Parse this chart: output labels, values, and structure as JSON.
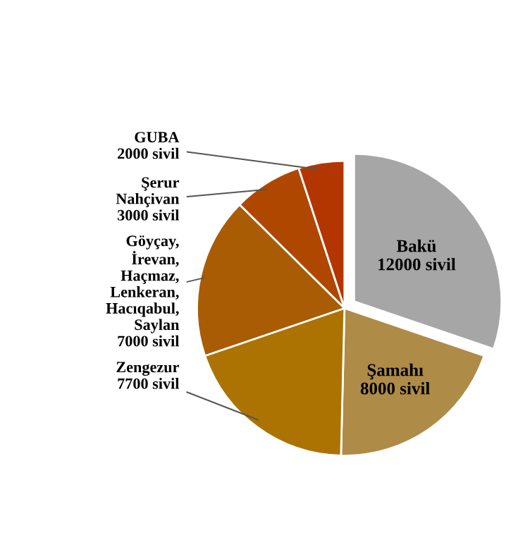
{
  "chart_data": {
    "type": "pie",
    "categories": [
      "Bakü",
      "Şamahı",
      "Zengezur",
      "Göyçay,\nİrevan,\nHaçmaz,\nLenkeran,\nHacıqabul,\nSaylan",
      "Şerur\nNahçivan",
      "GUBA"
    ],
    "values": [
      12000,
      8000,
      7700,
      7000,
      3000,
      2000
    ],
    "value_labels": [
      "12000 sivil",
      "8000 sivil",
      "7700 sivil",
      "7000 sivil",
      "3000 sivil",
      "2000 sivil"
    ],
    "colors": [
      "#a6a6a6",
      "#ae8b47",
      "#ad7302",
      "#a95c04",
      "#b04700",
      "#b33600"
    ],
    "legend": false
  }
}
